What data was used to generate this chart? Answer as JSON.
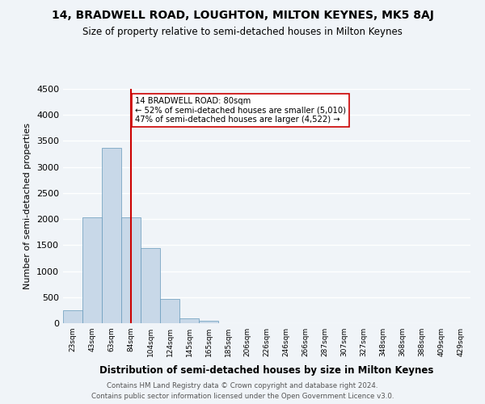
{
  "title": "14, BRADWELL ROAD, LOUGHTON, MILTON KEYNES, MK5 8AJ",
  "subtitle": "Size of property relative to semi-detached houses in Milton Keynes",
  "xlabel": "Distribution of semi-detached houses by size in Milton Keynes",
  "ylabel": "Number of semi-detached properties",
  "bar_color": "#c8d8e8",
  "bar_edge_color": "#6699bb",
  "background_color": "#f0f4f8",
  "plot_bg_color": "#f0f4f8",
  "grid_color": "#ffffff",
  "bin_labels": [
    "23sqm",
    "43sqm",
    "63sqm",
    "84sqm",
    "104sqm",
    "124sqm",
    "145sqm",
    "165sqm",
    "185sqm",
    "206sqm",
    "226sqm",
    "246sqm",
    "266sqm",
    "287sqm",
    "307sqm",
    "327sqm",
    "348sqm",
    "368sqm",
    "388sqm",
    "409sqm",
    "429sqm"
  ],
  "bar_values": [
    250,
    2030,
    3370,
    2030,
    1450,
    470,
    90,
    50,
    0,
    0,
    0,
    0,
    0,
    0,
    0,
    0,
    0,
    0,
    0,
    0,
    0
  ],
  "ylim": [
    0,
    4500
  ],
  "yticks": [
    0,
    500,
    1000,
    1500,
    2000,
    2500,
    3000,
    3500,
    4000,
    4500
  ],
  "property_bin_index": 3,
  "annotation_title": "14 BRADWELL ROAD: 80sqm",
  "annotation_line1": "← 52% of semi-detached houses are smaller (5,010)",
  "annotation_line2": "47% of semi-detached houses are larger (4,522) →",
  "vline_color": "#cc0000",
  "annotation_box_color": "#ffffff",
  "annotation_box_edge": "#cc0000",
  "footer_line1": "Contains HM Land Registry data © Crown copyright and database right 2024.",
  "footer_line2": "Contains public sector information licensed under the Open Government Licence v3.0."
}
